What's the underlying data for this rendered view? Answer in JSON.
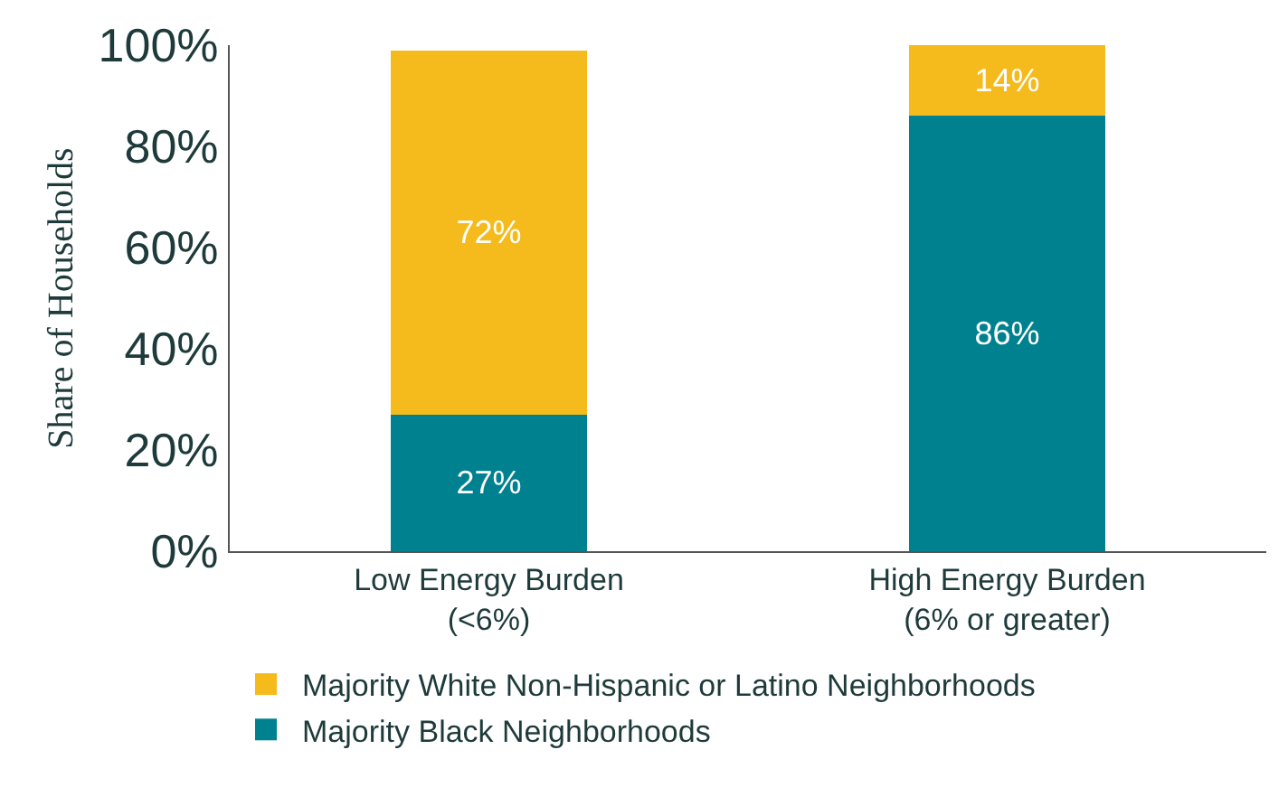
{
  "chart_data": {
    "type": "bar",
    "stacked": true,
    "ylabel": "Share of Households",
    "categories": [
      "Low Energy Burden\n(<6%)",
      "High Energy Burden\n(6% or greater)"
    ],
    "series": [
      {
        "name": "Majority Black Neighborhoods",
        "color": "#00818f",
        "values": [
          27,
          86
        ],
        "value_labels": [
          "27%",
          "86%"
        ]
      },
      {
        "name": "Majority White Non-Hispanic or Latino Neighborhoods",
        "color": "#f5bb1c",
        "values": [
          72,
          14
        ],
        "value_labels": [
          "72%",
          "14%"
        ]
      }
    ],
    "ylim": [
      0,
      100
    ],
    "yticks": [
      {
        "value": 0,
        "label": "0%"
      },
      {
        "value": 20,
        "label": "20%"
      },
      {
        "value": 40,
        "label": "40%"
      },
      {
        "value": 60,
        "label": "60%"
      },
      {
        "value": 80,
        "label": "80%"
      },
      {
        "value": 100,
        "label": "100%"
      }
    ],
    "grid": false,
    "legend": "bottom"
  }
}
